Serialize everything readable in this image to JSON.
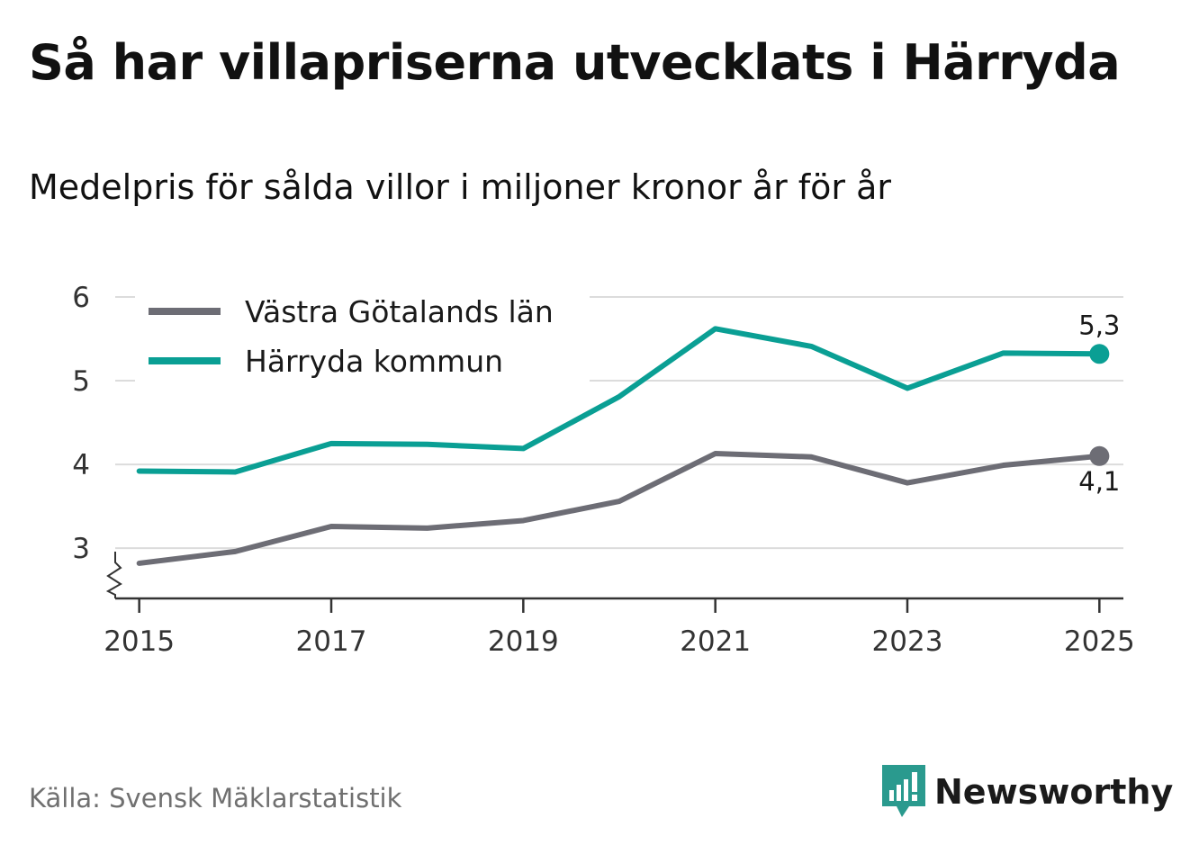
{
  "header": {
    "title": "Så har villapriserna utvecklats i Härryda",
    "subtitle": "Medelpris för sålda villor i miljoner kronor år för år"
  },
  "footer": {
    "source": "Källa: Svensk Mäklarstatistik",
    "brand": "Newsworthy"
  },
  "colors": {
    "brand": "#2a9a8e",
    "series_gray": "#6d6d75",
    "series_teal": "#0a9f94",
    "grid": "#dcdcdc",
    "axis": "#333333"
  },
  "chart_data": {
    "type": "line",
    "x": [
      2015,
      2016,
      2017,
      2018,
      2019,
      2020,
      2021,
      2022,
      2023,
      2024,
      2025
    ],
    "x_tick_labels": [
      "2015",
      "2017",
      "2019",
      "2021",
      "2023",
      "2025"
    ],
    "y_tick_labels": [
      "3",
      "4",
      "5",
      "6"
    ],
    "ylim": [
      2.4,
      6
    ],
    "xlim": [
      2014.75,
      2025.25
    ],
    "y_axis_break": true,
    "grid": true,
    "legend": "top-left",
    "series": [
      {
        "name": "Västra Götalands län",
        "color": "#6d6d75",
        "values": [
          2.82,
          2.96,
          3.26,
          3.24,
          3.33,
          3.56,
          4.13,
          4.09,
          3.78,
          3.99,
          4.1
        ],
        "end_label": "4,1"
      },
      {
        "name": "Härryda kommun",
        "color": "#0a9f94",
        "values": [
          3.92,
          3.91,
          4.25,
          4.24,
          4.19,
          4.81,
          5.62,
          5.41,
          4.91,
          5.33,
          5.32
        ],
        "end_label": "5,3"
      }
    ]
  }
}
